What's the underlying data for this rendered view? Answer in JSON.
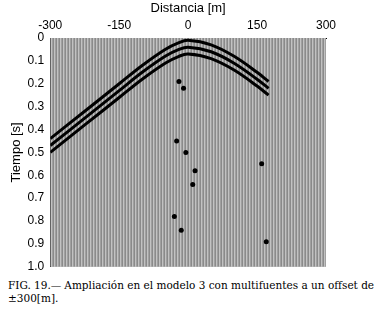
{
  "chart_data": {
    "type": "line",
    "x_label": "Distancia [m]",
    "y_label": "Tiempo [s]",
    "xlim": [
      -300,
      300
    ],
    "xticks": [
      -300,
      -150,
      0,
      150,
      300
    ],
    "ylim": [
      1,
      0
    ],
    "yticks": [
      0,
      0.1,
      0.2,
      0.3,
      0.4,
      0.5,
      0.6,
      0.7,
      0.8,
      0.9,
      {
        "value": 1,
        "label": "1.0"
      }
    ],
    "grid": false,
    "series": [
      {
        "color": "#000000",
        "type": "line",
        "x": [
          -300,
          -225,
          -150,
          -100,
          -50,
          -20,
          0,
          50,
          100,
          150,
          175
        ],
        "values": [
          0.44,
          0.32,
          0.2,
          0.12,
          0.05,
          0.02,
          0.01,
          0.03,
          0.08,
          0.15,
          0.19
        ]
      },
      {
        "color": "#000000",
        "type": "line",
        "x": [
          -300,
          -225,
          -150,
          -100,
          -50,
          -20,
          0,
          50,
          100,
          150,
          175
        ],
        "values": [
          0.47,
          0.35,
          0.23,
          0.15,
          0.08,
          0.05,
          0.04,
          0.06,
          0.11,
          0.18,
          0.22
        ]
      },
      {
        "color": "#000000",
        "type": "line",
        "x": [
          -300,
          -225,
          -150,
          -100,
          -50,
          -20,
          0,
          50,
          100,
          150,
          175
        ],
        "values": [
          0.5,
          0.38,
          0.26,
          0.18,
          0.11,
          0.08,
          0.07,
          0.09,
          0.14,
          0.21,
          0.25
        ]
      },
      {
        "color": "#000000",
        "type": "scatter",
        "x": [
          -20,
          -10,
          -25,
          -5,
          15,
          10,
          -30,
          -15,
          170,
          160
        ],
        "values": [
          0.19,
          0.22,
          0.45,
          0.5,
          0.58,
          0.64,
          0.78,
          0.84,
          0.89,
          0.55
        ]
      }
    ]
  },
  "figure_label": "FIG. 19.—",
  "caption": "Ampliación en el modelo 3 con multifuentes a un offset de ±300[m]."
}
